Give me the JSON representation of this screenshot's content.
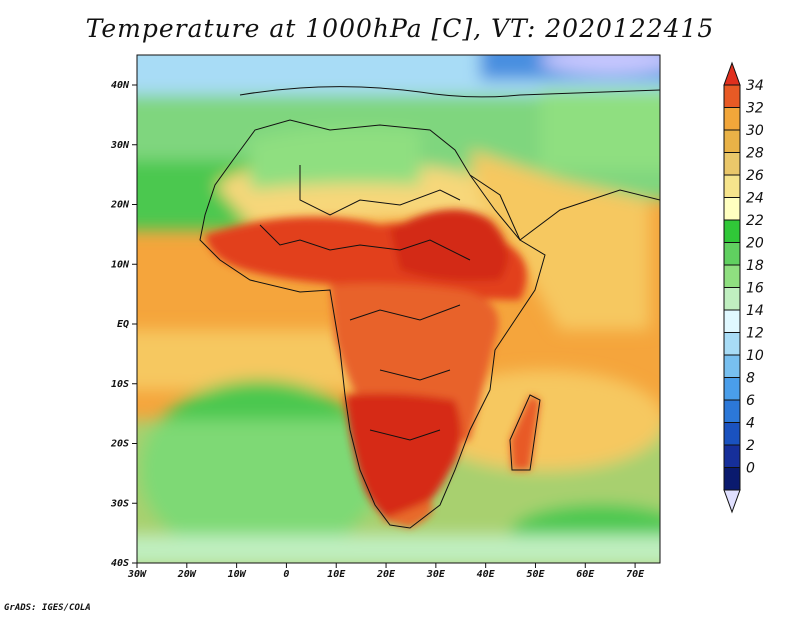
{
  "title": "Temperature at 1000hPa [C], VT: 2020122415",
  "credit": "GrADS: IGES/COLA",
  "map": {
    "lon_range": [
      -30,
      75
    ],
    "lat_range": [
      -40,
      45
    ],
    "x_ticks": [
      "30W",
      "20W",
      "10W",
      "0",
      "10E",
      "20E",
      "30E",
      "40E",
      "50E",
      "60E",
      "70E"
    ],
    "y_ticks": [
      "40N",
      "30N",
      "20N",
      "10N",
      "EQ",
      "10S",
      "20S",
      "30S",
      "40S"
    ],
    "regions": {
      "ocean_north_mid": "#8ee08a",
      "ocean_tropics": "#f5a53c",
      "ocean_south": "#4cc850",
      "sahara": "#f7d77a",
      "sahel_hot": "#e2401f",
      "central_africa": "#e8622a",
      "southern_hot": "#d62a18",
      "mediterranean": "#b8e4f4",
      "europe_cold": "#5aa4e4"
    }
  },
  "colorbar": {
    "levels": [
      "34",
      "32",
      "30",
      "28",
      "26",
      "24",
      "22",
      "20",
      "18",
      "16",
      "14",
      "12",
      "10",
      "8",
      "6",
      "4",
      "2",
      "0"
    ],
    "colors": [
      "#f2a63a",
      "#e9b247",
      "#eac76a",
      "#f6e48c",
      "#ffffc0",
      "#30c838",
      "#60d060",
      "#8fdf80",
      "#c0efc0",
      "#e0f8ff",
      "#a8dcf6",
      "#78c0f0",
      "#4a9eea",
      "#2c78d8",
      "#1a52bf",
      "#162f9a",
      "#0a1a6e"
    ],
    "top_color": "#e0301e",
    "top_band": "#e85a25",
    "bottom_color": "#e0e0ff"
  }
}
